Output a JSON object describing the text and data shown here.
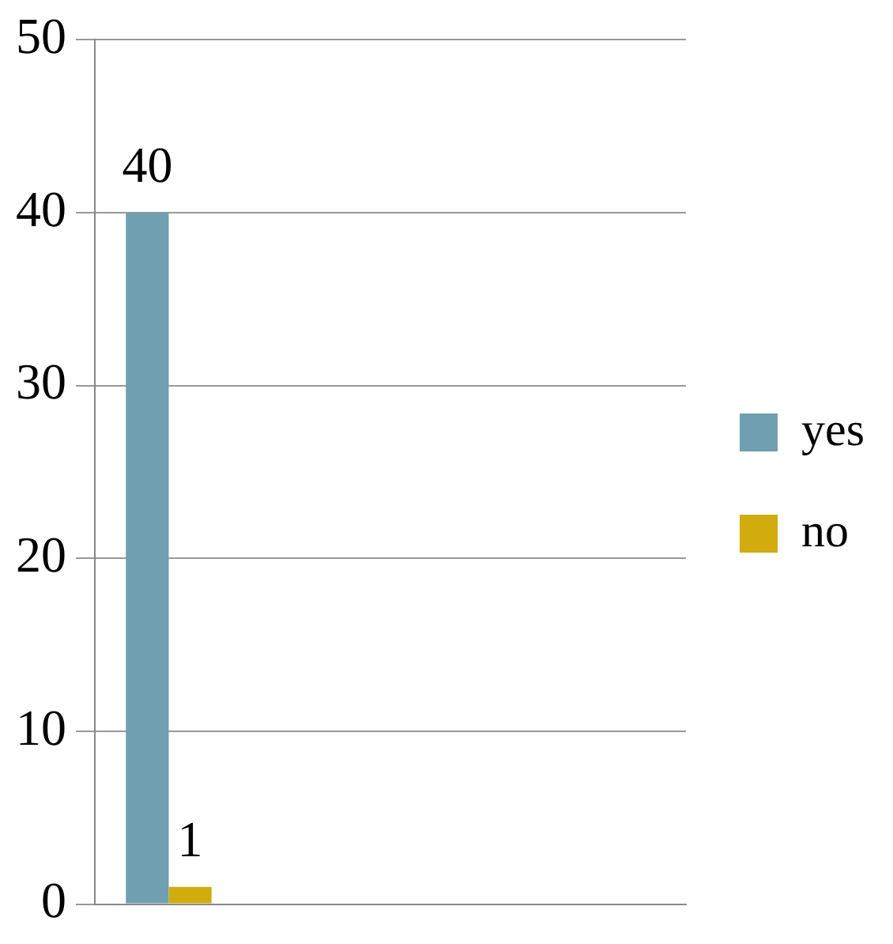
{
  "chart_data": {
    "type": "bar",
    "categories": [
      null,
      null,
      null,
      null
    ],
    "series": [
      {
        "name": "yes",
        "color": "#6f9fb0",
        "values": [
          40,
          null,
          null,
          null
        ]
      },
      {
        "name": "no",
        "color": "#d2ab0e",
        "values": [
          1,
          null,
          null,
          null
        ]
      }
    ],
    "ylim": [
      0,
      50
    ],
    "yticks": [
      0,
      10,
      20,
      30,
      40,
      50
    ],
    "grid": "y",
    "legend": "right",
    "data_labels": true
  }
}
